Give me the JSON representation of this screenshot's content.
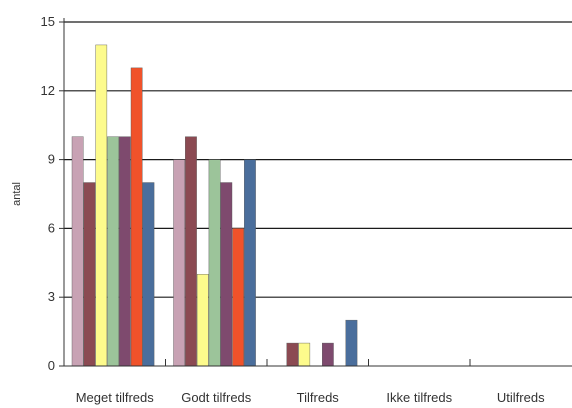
{
  "chart_data": {
    "type": "bar",
    "title": "",
    "xlabel": "",
    "ylabel": "antal",
    "ylim": [
      0,
      15
    ],
    "yticks": [
      0,
      3,
      6,
      9,
      12,
      15
    ],
    "grid": true,
    "legend": "none",
    "categories": [
      "Meget tilfreds",
      "Godt tilfreds",
      "Tilfreds",
      "Ikke tilfreds",
      "Utilfreds"
    ],
    "series": [
      {
        "color": "#c8a2b4",
        "values": [
          10,
          9,
          0,
          0,
          0
        ]
      },
      {
        "color": "#8b4a52",
        "values": [
          8,
          10,
          1,
          0,
          0
        ]
      },
      {
        "color": "#fdfb8c",
        "values": [
          14,
          4,
          1,
          0,
          0
        ]
      },
      {
        "color": "#9cc49a",
        "values": [
          10,
          9,
          0,
          0,
          0
        ]
      },
      {
        "color": "#7e4a6e",
        "values": [
          10,
          8,
          1,
          0,
          0
        ]
      },
      {
        "color": "#f0522a",
        "values": [
          13,
          6,
          0,
          0,
          0
        ]
      },
      {
        "color": "#4a6e9c",
        "values": [
          8,
          9,
          2,
          0,
          0
        ]
      }
    ]
  }
}
